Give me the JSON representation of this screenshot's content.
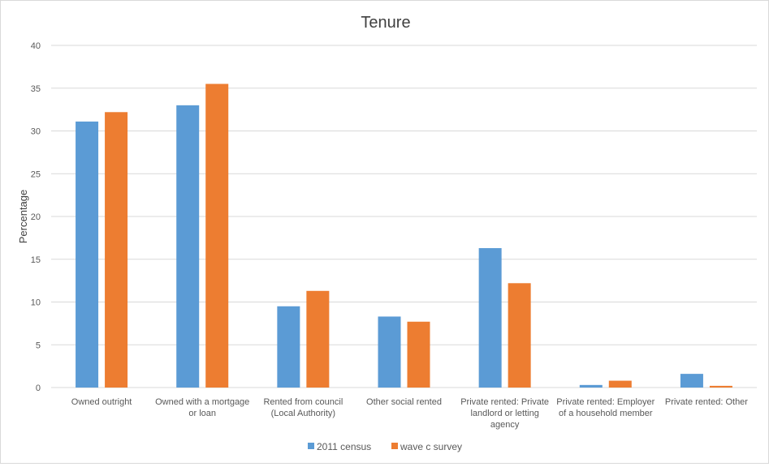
{
  "chart_data": {
    "type": "bar",
    "title": "Tenure",
    "ylabel": "Percentage",
    "xlabel": "",
    "ylim": [
      0,
      40
    ],
    "yticks": [
      0,
      5,
      10,
      15,
      20,
      25,
      30,
      35,
      40
    ],
    "grid": true,
    "legend_position": "bottom",
    "categories": [
      [
        "Owned outright"
      ],
      [
        "Owned with a mortgage",
        "or loan"
      ],
      [
        "Rented from council",
        "(Local Authority)"
      ],
      [
        "Other social rented"
      ],
      [
        "Private rented: Private",
        "landlord or letting",
        "agency"
      ],
      [
        "Private rented: Employer",
        "of a household member"
      ],
      [
        "Private rented: Other"
      ]
    ],
    "series": [
      {
        "name": "2011 census",
        "color": "#5b9bd5",
        "values": [
          31.1,
          33.0,
          9.5,
          8.3,
          16.3,
          0.3,
          1.6
        ]
      },
      {
        "name": "wave c survey",
        "color": "#ed7d31",
        "values": [
          32.2,
          35.5,
          11.3,
          7.7,
          12.2,
          0.8,
          0.2
        ]
      }
    ]
  }
}
